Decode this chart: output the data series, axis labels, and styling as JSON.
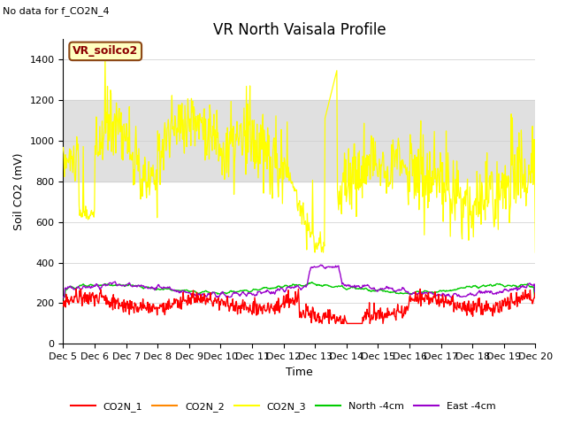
{
  "title": "VR North Vaisala Profile",
  "subtitle": "No data for f_CO2N_4",
  "ylabel": "Soil CO2 (mV)",
  "xlabel": "Time",
  "legend_label": "VR_soilco2",
  "ylim": [
    0,
    1500
  ],
  "xlim": [
    0,
    15
  ],
  "x_tick_labels": [
    "Dec 5",
    "Dec 6",
    "Dec 7",
    "Dec 8",
    "Dec 9",
    "Dec 10",
    "Dec 11",
    "Dec 12",
    "Dec 13",
    "Dec 14",
    "Dec 15",
    "Dec 16",
    "Dec 17",
    "Dec 18",
    "Dec 19",
    "Dec 20"
  ],
  "series_colors": {
    "CO2N_1": "#ff0000",
    "CO2N_2": "#ff8800",
    "CO2N_3": "#ffff00",
    "North_4cm": "#00cc00",
    "East_4cm": "#9900cc"
  },
  "legend_entries": [
    "CO2N_1",
    "CO2N_2",
    "CO2N_3",
    "North -4cm",
    "East -4cm"
  ],
  "legend_colors": [
    "#ff0000",
    "#ff8800",
    "#ffff00",
    "#00cc00",
    "#9900cc"
  ],
  "band_color": "#e0e0e0",
  "band_ylim": [
    800,
    1200
  ],
  "background_color": "#ffffff",
  "title_fontsize": 12,
  "label_fontsize": 9,
  "tick_fontsize": 8
}
